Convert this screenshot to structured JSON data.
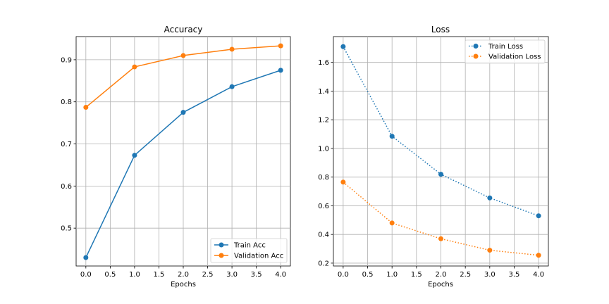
{
  "colors": {
    "blue": "#1f77b4",
    "orange": "#ff7f0e",
    "grid": "#b0b0b0"
  },
  "chart_data": [
    {
      "type": "line",
      "title": "Accuracy",
      "xlabel": "Epochs",
      "ylabel": "",
      "x": [
        0,
        1,
        2,
        3,
        4
      ],
      "xlim": [
        -0.2,
        4.2
      ],
      "ylim": [
        0.41,
        0.955
      ],
      "xticks": [
        0,
        0.5,
        1,
        1.5,
        2,
        2.5,
        3,
        3.5,
        4
      ],
      "xtick_labels": [
        "0.0",
        "0.5",
        "1.0",
        "1.5",
        "2.0",
        "2.5",
        "3.0",
        "3.5",
        "4.0"
      ],
      "yticks": [
        0.5,
        0.6,
        0.7,
        0.8,
        0.9
      ],
      "ytick_labels": [
        "0.5",
        "0.6",
        "0.7",
        "0.8",
        "0.9"
      ],
      "grid": true,
      "legend_position": "bottom-right",
      "series": [
        {
          "name": "Train Acc",
          "color": "#1f77b4",
          "style": "solid",
          "values": [
            0.43,
            0.673,
            0.775,
            0.836,
            0.875
          ]
        },
        {
          "name": "Validation Acc",
          "color": "#ff7f0e",
          "style": "solid",
          "values": [
            0.787,
            0.883,
            0.91,
            0.925,
            0.933
          ]
        }
      ]
    },
    {
      "type": "line",
      "title": "Loss",
      "xlabel": "Epochs",
      "ylabel": "",
      "x": [
        0,
        1,
        2,
        3,
        4
      ],
      "xlim": [
        -0.2,
        4.2
      ],
      "ylim": [
        0.18,
        1.78
      ],
      "xticks": [
        0,
        0.5,
        1,
        1.5,
        2,
        2.5,
        3,
        3.5,
        4
      ],
      "xtick_labels": [
        "0.0",
        "0.5",
        "1.0",
        "1.5",
        "2.0",
        "2.5",
        "3.0",
        "3.5",
        "4.0"
      ],
      "yticks": [
        0.2,
        0.4,
        0.6,
        0.8,
        1.0,
        1.2,
        1.4,
        1.6
      ],
      "ytick_labels": [
        "0.2",
        "0.4",
        "0.6",
        "0.8",
        "1.0",
        "1.2",
        "1.4",
        "1.6"
      ],
      "grid": true,
      "legend_position": "top-right",
      "series": [
        {
          "name": "Train Loss",
          "color": "#1f77b4",
          "style": "dotted",
          "values": [
            1.71,
            1.085,
            0.82,
            0.655,
            0.53
          ]
        },
        {
          "name": "Validation Loss",
          "color": "#ff7f0e",
          "style": "dotted",
          "values": [
            0.765,
            0.48,
            0.37,
            0.29,
            0.255
          ]
        }
      ]
    }
  ]
}
